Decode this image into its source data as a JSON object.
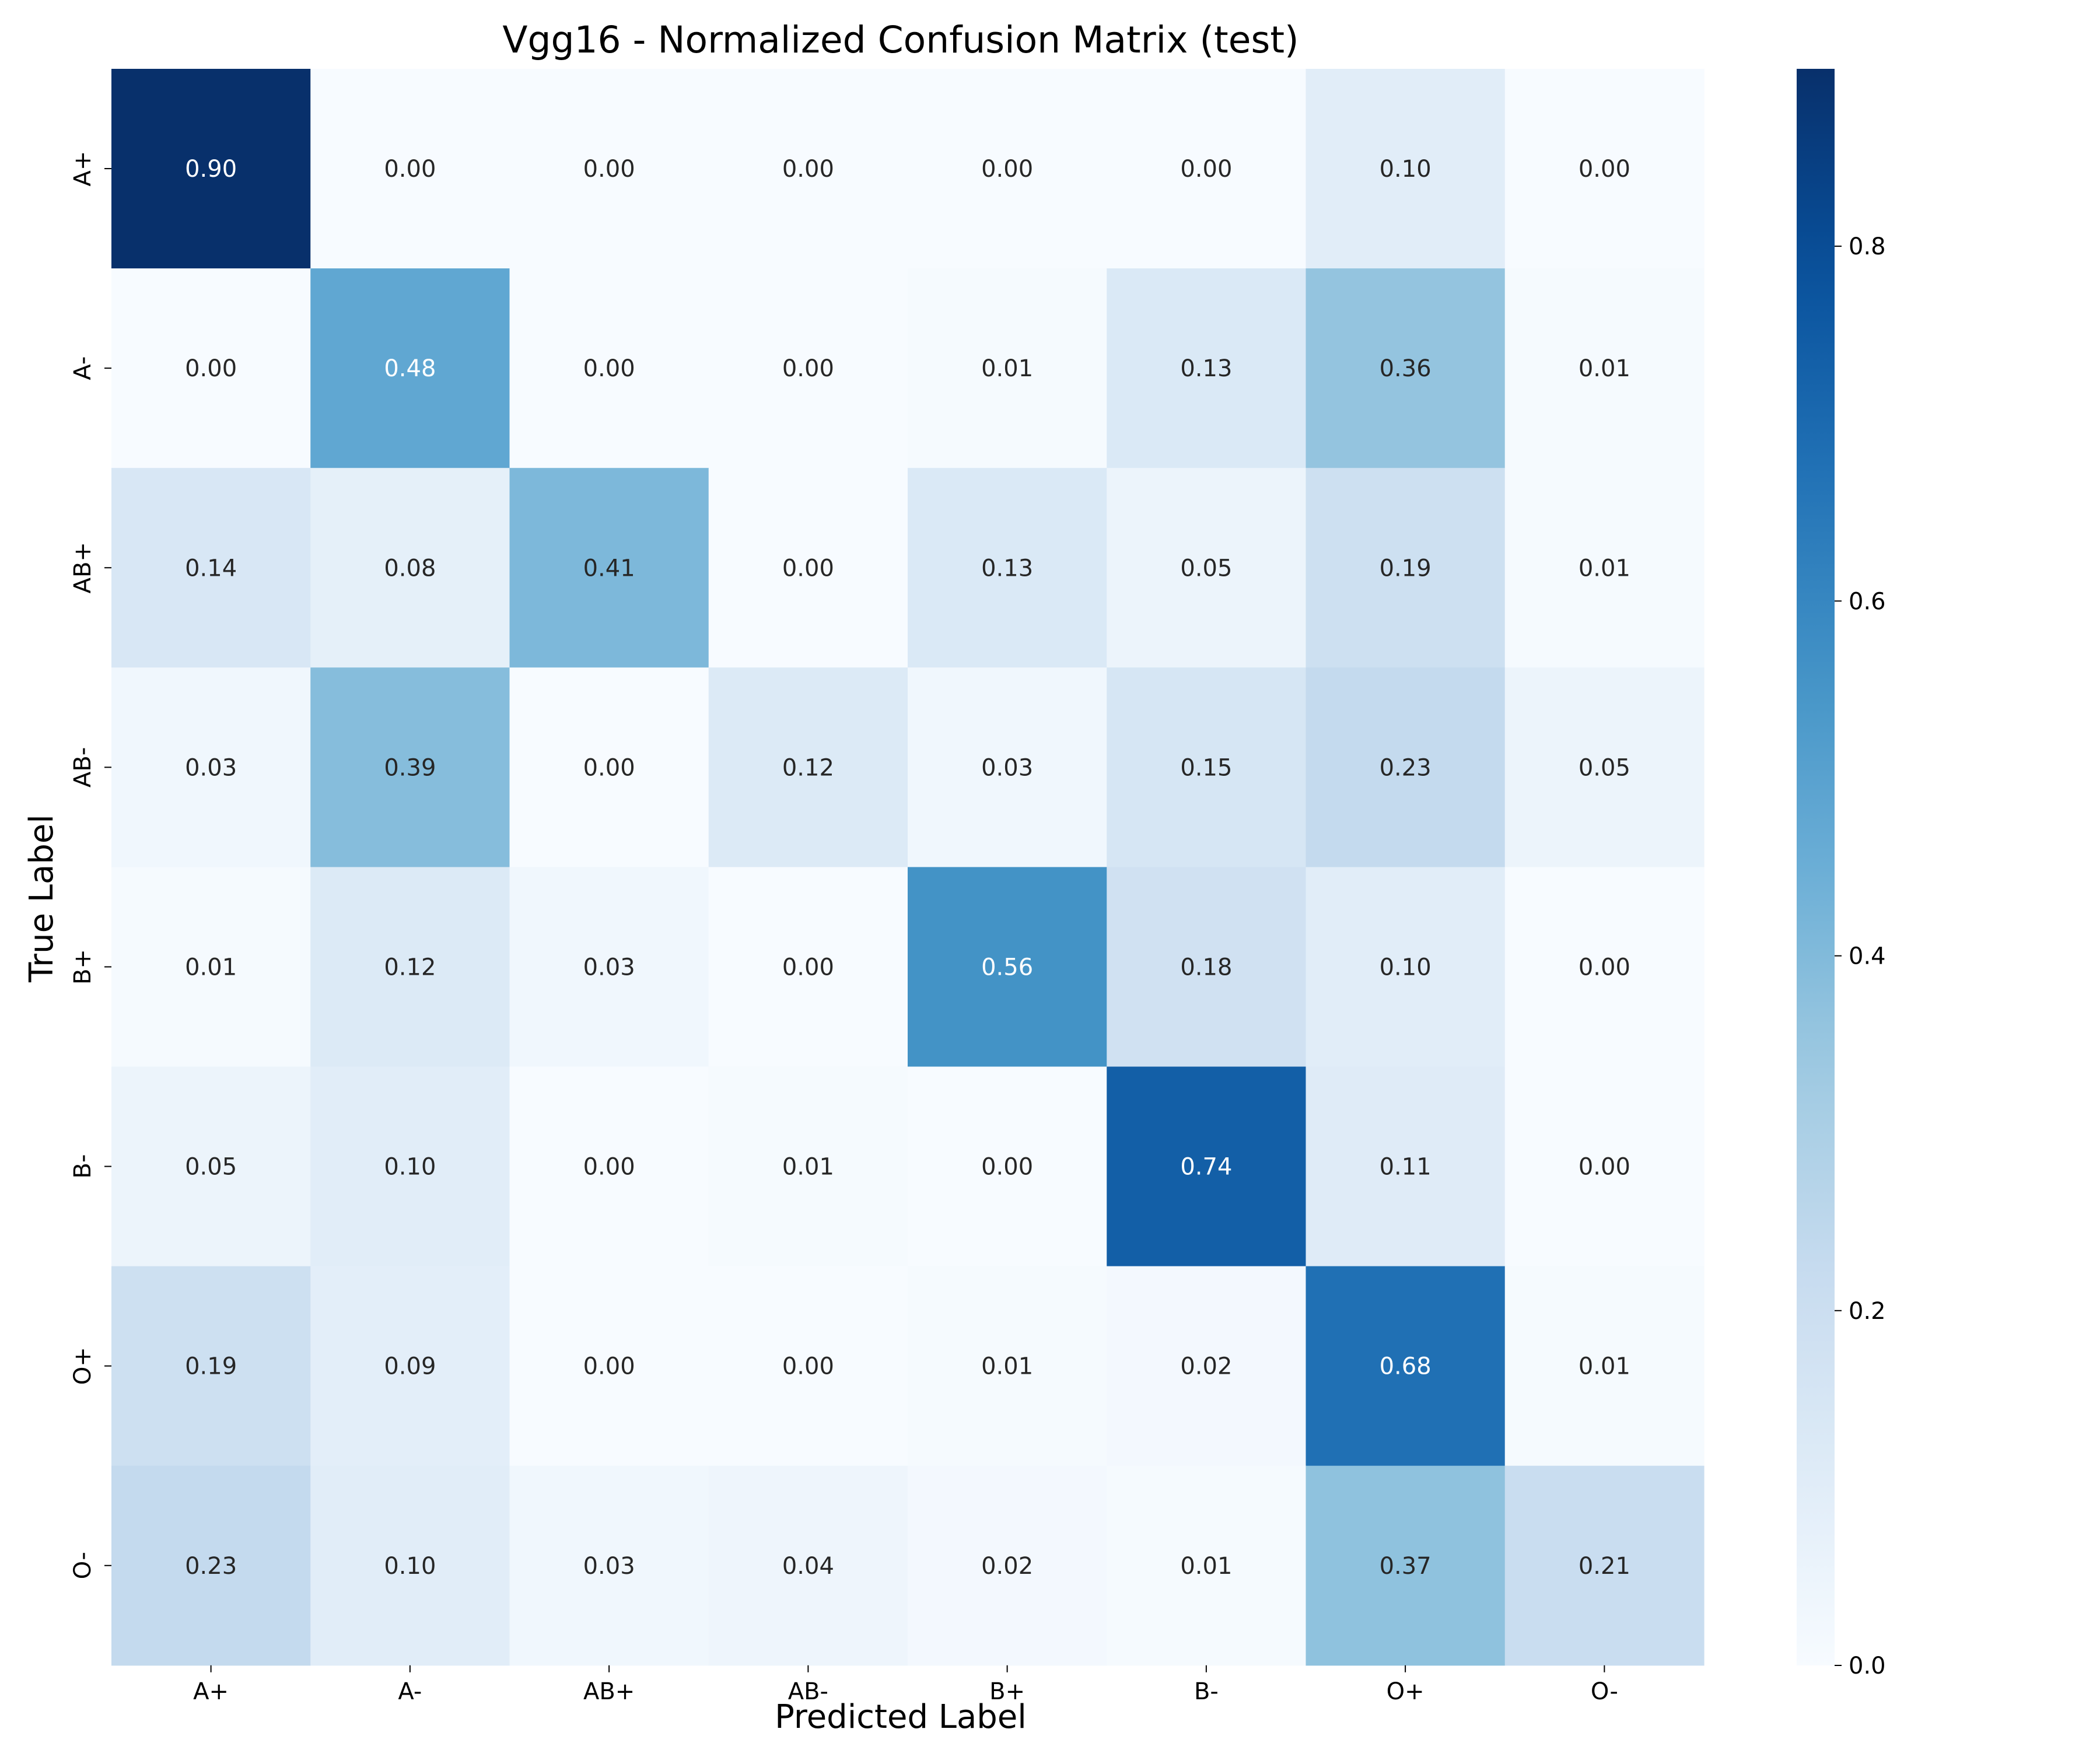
{
  "chart_data": {
    "type": "heatmap",
    "title": "Vgg16 - Normalized Confusion Matrix (test)",
    "xlabel": "Predicted Label",
    "ylabel": "True Label",
    "x_categories": [
      "A+",
      "A-",
      "AB+",
      "AB-",
      "B+",
      "B-",
      "O+",
      "O-"
    ],
    "y_categories": [
      "A+",
      "A-",
      "AB+",
      "AB-",
      "B+",
      "B-",
      "O+",
      "O-"
    ],
    "values": [
      [
        0.9,
        0.0,
        0.0,
        0.0,
        0.0,
        0.0,
        0.1,
        0.0
      ],
      [
        0.0,
        0.48,
        0.0,
        0.0,
        0.01,
        0.13,
        0.36,
        0.01
      ],
      [
        0.14,
        0.08,
        0.41,
        0.0,
        0.13,
        0.05,
        0.19,
        0.01
      ],
      [
        0.03,
        0.39,
        0.0,
        0.12,
        0.03,
        0.15,
        0.23,
        0.05
      ],
      [
        0.01,
        0.12,
        0.03,
        0.0,
        0.56,
        0.18,
        0.1,
        0.0
      ],
      [
        0.05,
        0.1,
        0.0,
        0.01,
        0.0,
        0.74,
        0.11,
        0.0
      ],
      [
        0.19,
        0.09,
        0.0,
        0.0,
        0.01,
        0.02,
        0.68,
        0.01
      ],
      [
        0.23,
        0.1,
        0.03,
        0.04,
        0.02,
        0.01,
        0.37,
        0.21
      ]
    ],
    "colormap": "Blues",
    "vmin": 0.0,
    "vmax": 0.9,
    "colorbar_ticks": [
      0.0,
      0.2,
      0.4,
      0.6,
      0.8
    ],
    "colorbar_tick_labels": [
      "0.0",
      "0.2",
      "0.4",
      "0.6",
      "0.8"
    ],
    "grid": false
  }
}
